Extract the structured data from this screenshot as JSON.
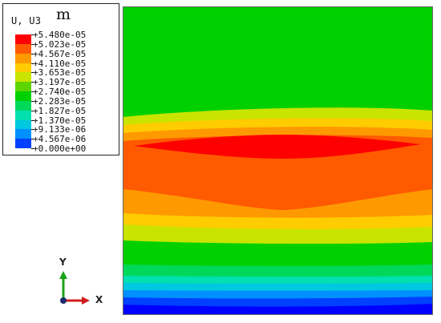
{
  "legend": {
    "title": "U, U3",
    "unit": "m",
    "levels": [
      {
        "label": "+5.480e-05",
        "color": "#ff0000"
      },
      {
        "label": "+5.023e-05",
        "color": "#ff5a00"
      },
      {
        "label": "+4.567e-05",
        "color": "#ff9900"
      },
      {
        "label": "+4.110e-05",
        "color": "#ffcc00"
      },
      {
        "label": "+3.653e-05",
        "color": "#c8e400"
      },
      {
        "label": "+3.197e-05",
        "color": "#5ed400"
      },
      {
        "label": "+2.740e-05",
        "color": "#00d000"
      },
      {
        "label": "+2.283e-05",
        "color": "#00d85a"
      },
      {
        "label": "+1.827e-05",
        "color": "#00e0b0"
      },
      {
        "label": "+1.370e-05",
        "color": "#00c8e0"
      },
      {
        "label": "+9.133e-06",
        "color": "#0090ff"
      },
      {
        "label": "+4.567e-06",
        "color": "#0040ff"
      },
      {
        "label": "+0.000e+00",
        "color": "#0000ff"
      }
    ]
  },
  "triad": {
    "y_label": "Y",
    "x_label": "X",
    "y_color": "#1aa31a",
    "x_color": "#d01c1c",
    "origin_color": "#1a2a6a"
  },
  "contour": {
    "band_colors": {
      "blue_dark": "#0000ff",
      "blue": "#0040ff",
      "blue_mid": "#0090ff",
      "cyan": "#00c8e0",
      "teal": "#00e0b0",
      "green_teal": "#00d85a",
      "green": "#00d000",
      "yellow_green": "#c8e400",
      "yellow": "#ffcc00",
      "orange_light": "#ff9900",
      "orange": "#ff5a00",
      "red": "#ff0000"
    }
  }
}
